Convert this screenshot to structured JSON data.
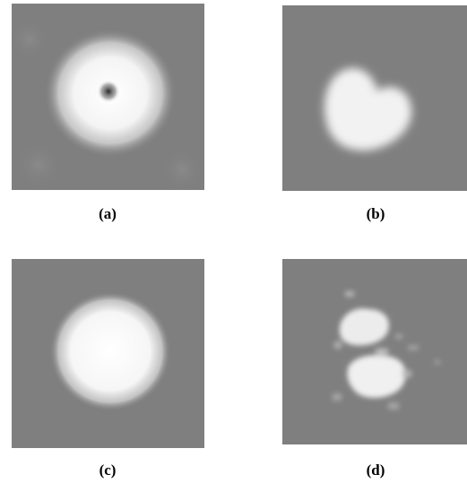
{
  "figure": {
    "panels": [
      {
        "id": "a",
        "caption": "(a)"
      },
      {
        "id": "b",
        "caption": "(b)"
      },
      {
        "id": "c",
        "caption": "(c)"
      },
      {
        "id": "d",
        "caption": "(d)"
      }
    ]
  },
  "colors": {
    "background_gray": "#7f7f7f",
    "blob_white": "#ffffff"
  }
}
